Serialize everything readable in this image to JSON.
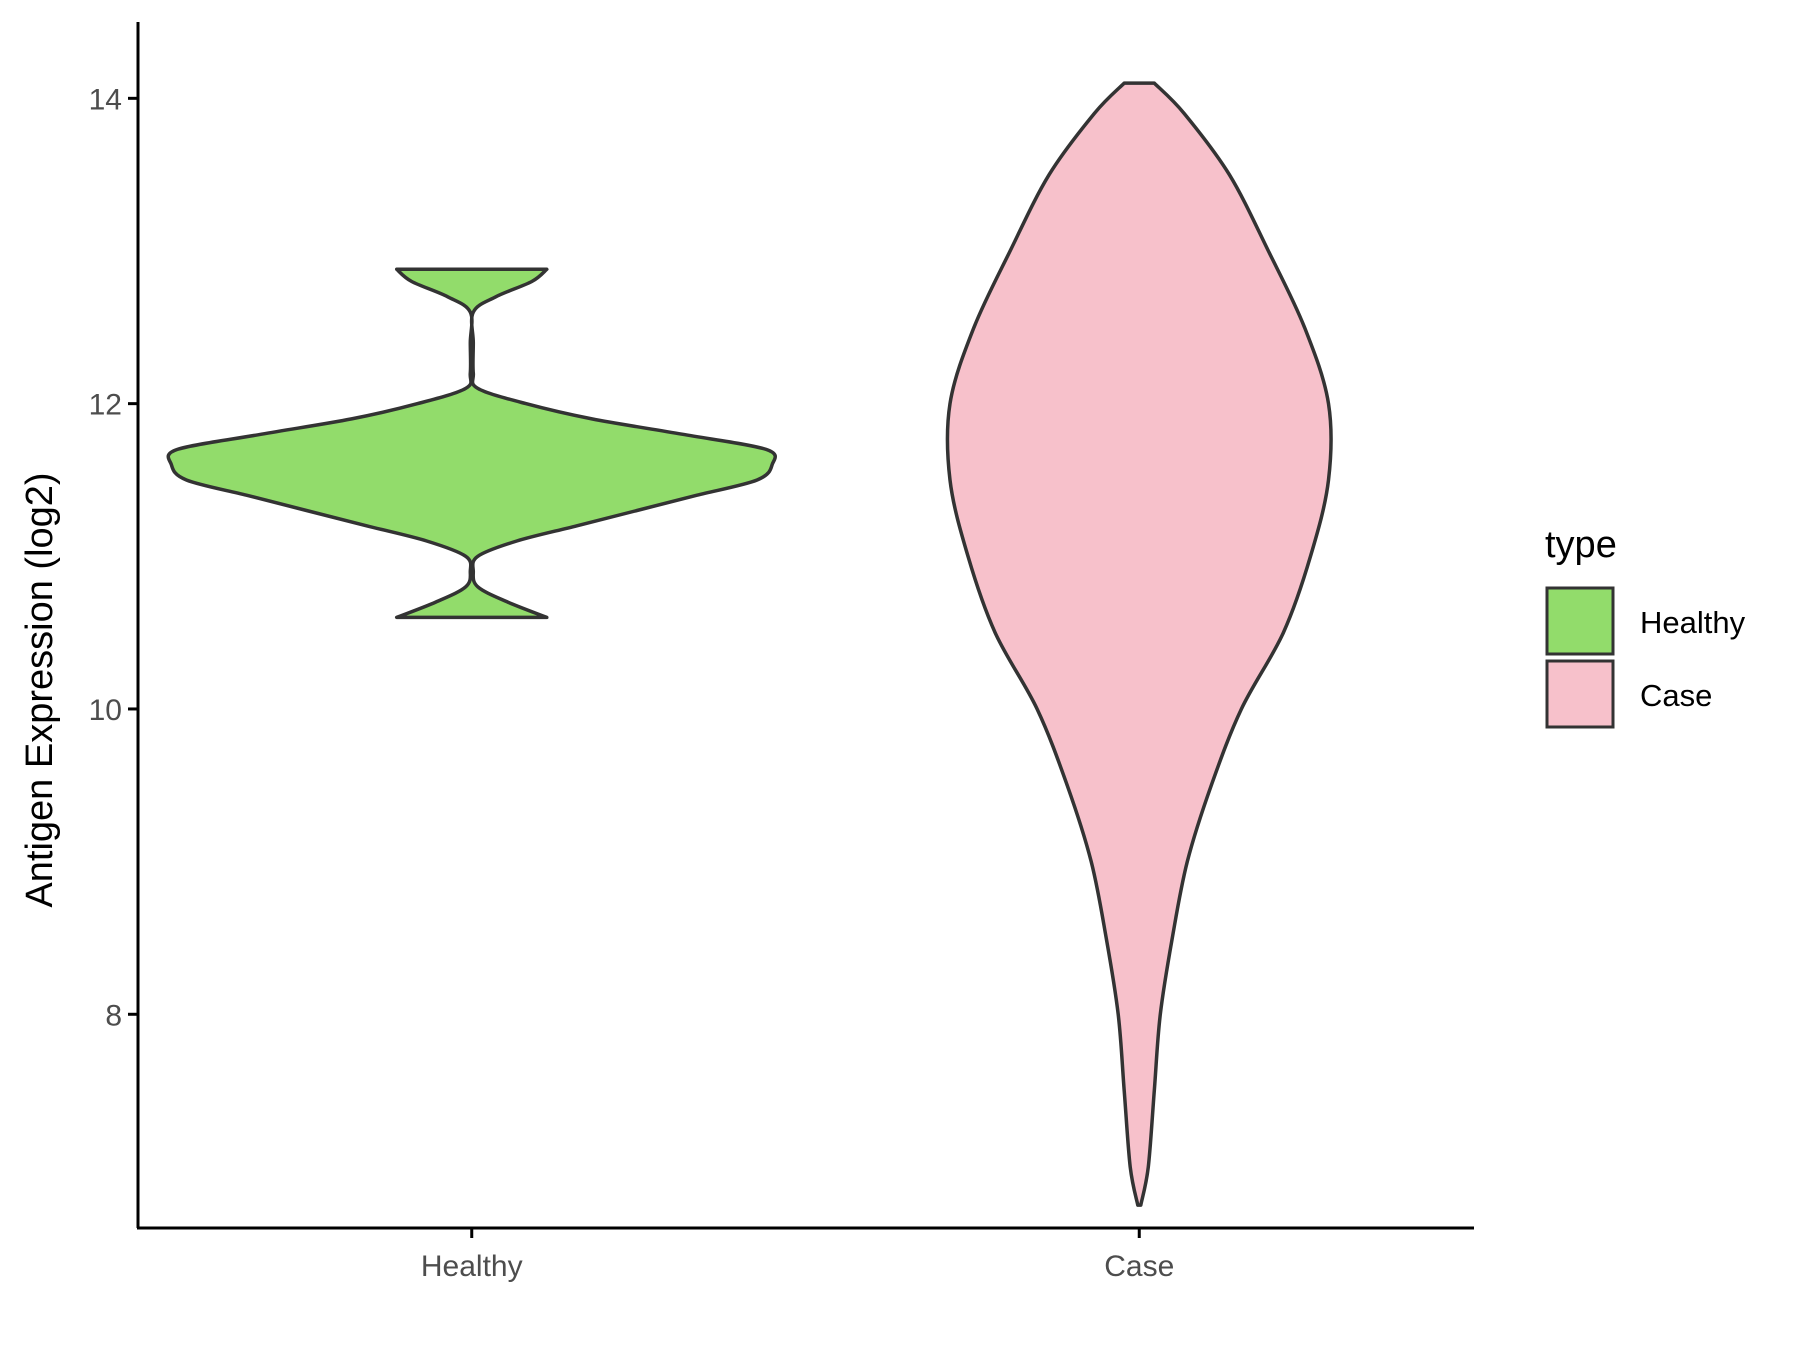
{
  "chart_data": {
    "type": "violin",
    "ylabel": "Antigen Expression (log2)",
    "xlabel": "",
    "ylim": [
      6.6,
      14.5
    ],
    "yticks": [
      8,
      10,
      12,
      14
    ],
    "categories": [
      "Healthy",
      "Case"
    ],
    "grid": false,
    "legend": {
      "title": "type",
      "position": "right",
      "entries": [
        {
          "label": "Healthy",
          "color": "#92dc6b"
        },
        {
          "label": "Case",
          "color": "#f7c1cb"
        }
      ]
    },
    "series": [
      {
        "category": "Healthy",
        "color": "#92dc6b",
        "min": 10.6,
        "max": 12.88,
        "density": [
          [
            10.6,
            0.25
          ],
          [
            10.7,
            0.12
          ],
          [
            10.8,
            0.02
          ],
          [
            10.9,
            0.0
          ],
          [
            11.0,
            0.02
          ],
          [
            11.1,
            0.15
          ],
          [
            11.2,
            0.35
          ],
          [
            11.3,
            0.55
          ],
          [
            11.4,
            0.75
          ],
          [
            11.5,
            0.95
          ],
          [
            11.6,
            1.0
          ],
          [
            11.7,
            0.98
          ],
          [
            11.8,
            0.7
          ],
          [
            11.9,
            0.4
          ],
          [
            12.0,
            0.18
          ],
          [
            12.1,
            0.02
          ],
          [
            12.2,
            0.0
          ],
          [
            12.4,
            0.0
          ],
          [
            12.6,
            0.0
          ],
          [
            12.7,
            0.08
          ],
          [
            12.8,
            0.2
          ],
          [
            12.88,
            0.25
          ]
        ]
      },
      {
        "category": "Case",
        "color": "#f7c1cb",
        "min": 6.75,
        "max": 14.1,
        "density": [
          [
            6.75,
            0.0
          ],
          [
            7.0,
            0.03
          ],
          [
            7.5,
            0.05
          ],
          [
            8.0,
            0.07
          ],
          [
            8.5,
            0.11
          ],
          [
            9.0,
            0.16
          ],
          [
            9.5,
            0.24
          ],
          [
            10.0,
            0.34
          ],
          [
            10.5,
            0.48
          ],
          [
            11.0,
            0.57
          ],
          [
            11.5,
            0.63
          ],
          [
            12.0,
            0.63
          ],
          [
            12.5,
            0.55
          ],
          [
            13.0,
            0.43
          ],
          [
            13.5,
            0.3
          ],
          [
            13.9,
            0.15
          ],
          [
            14.1,
            0.05
          ]
        ]
      }
    ]
  }
}
